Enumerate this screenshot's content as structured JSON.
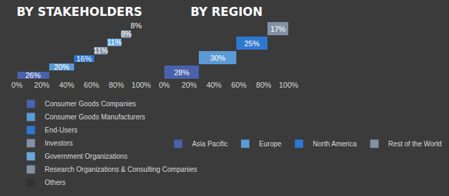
{
  "chart_data": [
    {
      "type": "bar",
      "title": "BY STAKEHOLDERS",
      "orientation": "horizontal",
      "stacked": true,
      "categories": [
        "Consumer Goods Companies",
        "Consumer Goods Manufacturers",
        "End-Users",
        "Investors",
        "Government Organizations",
        "Research Organizations & Consulting Companies",
        "Others"
      ],
      "values": [
        26,
        20,
        16,
        11,
        11,
        8,
        8
      ],
      "value_labels": [
        "26%",
        "20%",
        "16%",
        "11%",
        "11%",
        "8%",
        "8%"
      ],
      "colors": [
        "#4a62ad",
        "#5b9bd5",
        "#2f78d0",
        "#8391a5",
        "#69a7dc",
        "#8391a5",
        "#333333"
      ],
      "data_labels": true,
      "xlim": [
        0,
        100
      ],
      "xticks": [
        {
          "value": 0,
          "label": "0%"
        },
        {
          "value": 20,
          "label": "20%"
        },
        {
          "value": 40,
          "label": "40%"
        },
        {
          "value": 60,
          "label": "60%"
        },
        {
          "value": 80,
          "label": "80%"
        },
        {
          "value": 100,
          "label": "100%"
        }
      ],
      "grid": false,
      "tick_labels": "x",
      "legend": "bottom"
    },
    {
      "type": "bar",
      "title": "BY REGION",
      "orientation": "horizontal",
      "stacked": true,
      "categories": [
        "Asia Pacific",
        "Europe",
        "North America",
        "Rest of the World"
      ],
      "values": [
        28,
        30,
        25,
        17
      ],
      "value_labels": [
        "28%",
        "30%",
        "25%",
        "17%"
      ],
      "colors": [
        "#4a62ad",
        "#5b9bd5",
        "#2f78d0",
        "#8391a5"
      ],
      "data_labels": true,
      "xlim": [
        0,
        100
      ],
      "xticks": [
        {
          "value": 0,
          "label": "0%"
        },
        {
          "value": 20,
          "label": "20%"
        },
        {
          "value": 40,
          "label": "40%"
        },
        {
          "value": 60,
          "label": "60%"
        },
        {
          "value": 80,
          "label": "80%"
        },
        {
          "value": 100,
          "label": "100%"
        }
      ],
      "grid": false,
      "tick_labels": "x",
      "legend": "bottom"
    }
  ]
}
